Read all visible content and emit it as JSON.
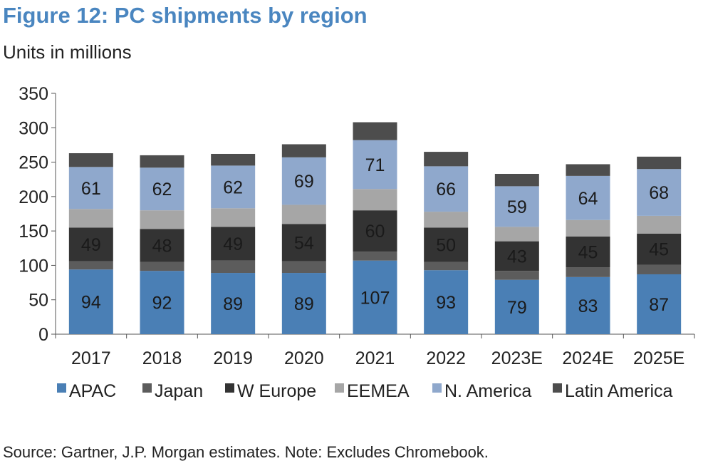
{
  "title": "Figure 12: PC shipments by region",
  "subtitle": "Units in millions",
  "source": "Source: Gartner, J.P. Morgan estimates. Note: Excludes Chromebook.",
  "chart_data": {
    "type": "bar",
    "stacked": true,
    "categories": [
      "2017",
      "2018",
      "2019",
      "2020",
      "2021",
      "2022",
      "2023E",
      "2024E",
      "2025E"
    ],
    "ylim": [
      0,
      350
    ],
    "yticks": [
      0,
      50,
      100,
      150,
      200,
      250,
      300,
      350
    ],
    "legend_position": "bottom",
    "series": [
      {
        "name": "APAC",
        "color": "#4a7fb5",
        "values": [
          94,
          92,
          89,
          89,
          107,
          93,
          79,
          83,
          87
        ],
        "labeled": true
      },
      {
        "name": "Japan",
        "color": "#5c5c5c",
        "values": [
          12,
          13,
          18,
          17,
          13,
          12,
          13,
          14,
          14
        ],
        "labeled": false
      },
      {
        "name": "W Europe",
        "color": "#333333",
        "values": [
          49,
          48,
          49,
          54,
          60,
          50,
          43,
          45,
          45
        ],
        "labeled": true
      },
      {
        "name": "EEMEA",
        "color": "#a6a6a6",
        "values": [
          27,
          27,
          27,
          28,
          31,
          23,
          21,
          24,
          26
        ],
        "labeled": false
      },
      {
        "name": "N. America",
        "color": "#8fa8cc",
        "values": [
          61,
          62,
          62,
          69,
          71,
          66,
          59,
          64,
          68
        ],
        "labeled": true
      },
      {
        "name": "Latin America",
        "color": "#4d4d4d",
        "values": [
          20,
          18,
          17,
          19,
          26,
          21,
          18,
          17,
          18
        ],
        "labeled": false
      }
    ]
  }
}
